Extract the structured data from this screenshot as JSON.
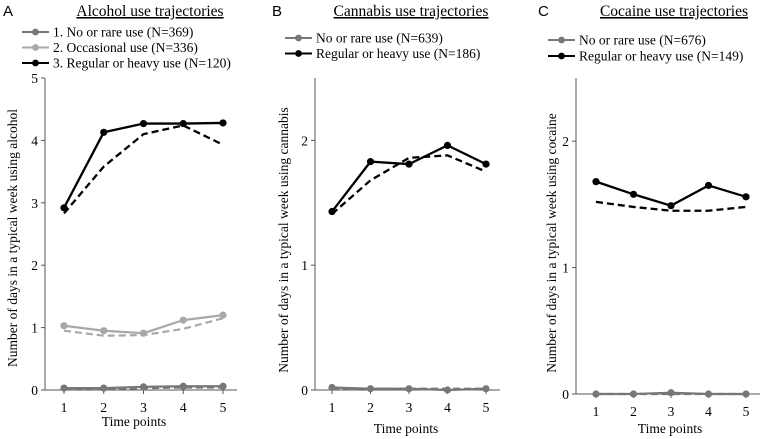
{
  "chart_data": [
    {
      "type": "line",
      "panel_label": "A",
      "title": "Alcohol use trajectories",
      "xlabel": "Time points",
      "ylabel": "Number of days in a typical week using alcohol",
      "x": [
        1,
        2,
        3,
        4,
        5
      ],
      "ylim": [
        0,
        5
      ],
      "yticks": [
        0,
        1,
        2,
        3,
        4,
        5
      ],
      "legend_position": "top-left",
      "series": [
        {
          "name": "1. No or rare use (N=369)",
          "color": "#777777",
          "observed": [
            0.03,
            0.03,
            0.05,
            0.06,
            0.06
          ],
          "estimated": [
            0.02,
            0.02,
            0.03,
            0.04,
            0.04
          ]
        },
        {
          "name": "2. Occasional use (N=336)",
          "color": "#a8a8a8",
          "observed": [
            1.03,
            0.95,
            0.91,
            1.12,
            1.2
          ],
          "estimated": [
            0.95,
            0.87,
            0.88,
            0.98,
            1.15
          ]
        },
        {
          "name": "3. Regular or heavy use (N=120)",
          "color": "#000000",
          "observed": [
            2.92,
            4.13,
            4.27,
            4.27,
            4.28
          ],
          "estimated": [
            2.83,
            3.58,
            4.1,
            4.24,
            3.93
          ]
        }
      ]
    },
    {
      "type": "line",
      "panel_label": "B",
      "title": "Cannabis use trajectories",
      "xlabel": "Time points",
      "ylabel": "Number of days in a typical week using cannabis",
      "x": [
        1,
        2,
        3,
        4,
        5
      ],
      "ylim": [
        0,
        2.5
      ],
      "yticks": [
        0,
        1,
        2
      ],
      "legend_position": "top-left",
      "series": [
        {
          "name": "No or rare use (N=639)",
          "color": "#777777",
          "observed": [
            0.02,
            0.01,
            0.01,
            0.0,
            0.01
          ],
          "estimated": [
            0.01,
            0.01,
            0.01,
            0.01,
            0.01
          ]
        },
        {
          "name": "Regular or heavy use (N=186)",
          "color": "#000000",
          "observed": [
            1.43,
            1.83,
            1.81,
            1.96,
            1.81
          ],
          "estimated": [
            1.41,
            1.68,
            1.86,
            1.88,
            1.75
          ]
        }
      ]
    },
    {
      "type": "line",
      "panel_label": "C",
      "title": "Cocaine use trajectories",
      "xlabel": "Time points",
      "ylabel": "Number of days in a typical week using cocaine",
      "x": [
        1,
        2,
        3,
        4,
        5
      ],
      "ylim": [
        0,
        2.5
      ],
      "yticks": [
        0,
        1,
        2
      ],
      "legend_position": "top-left",
      "series": [
        {
          "name": "No or rare use (N=676)",
          "color": "#777777",
          "observed": [
            0.0,
            0.0,
            0.01,
            0.0,
            0.0
          ],
          "estimated": [
            0.0,
            0.0,
            0.0,
            0.0,
            0.0
          ]
        },
        {
          "name": "Regular or heavy use (N=149)",
          "color": "#000000",
          "observed": [
            1.68,
            1.58,
            1.49,
            1.65,
            1.56
          ],
          "estimated": [
            1.52,
            1.48,
            1.45,
            1.45,
            1.48
          ]
        }
      ]
    }
  ]
}
